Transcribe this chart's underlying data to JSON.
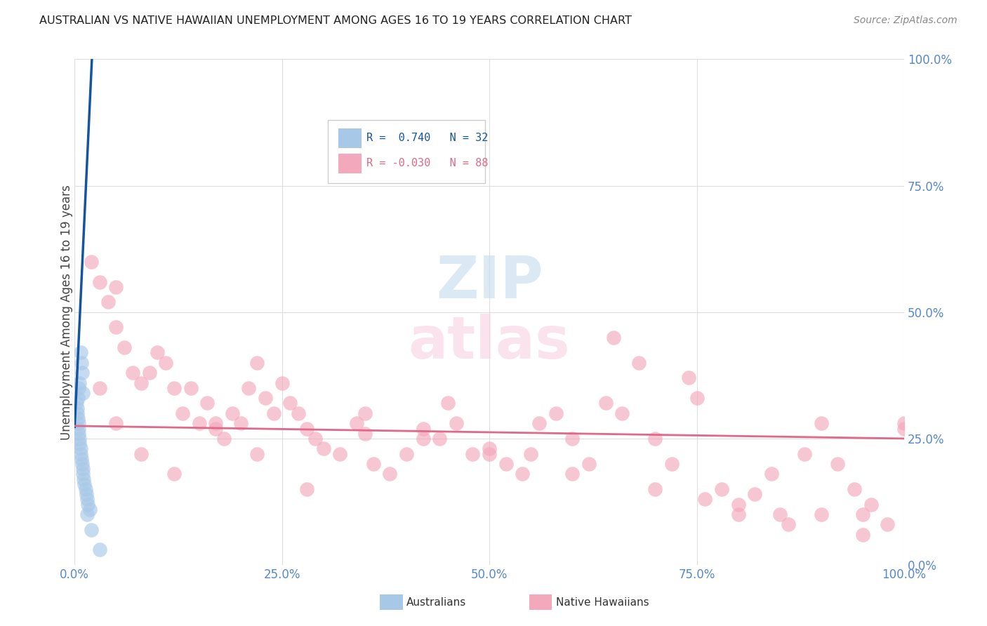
{
  "title": "AUSTRALIAN VS NATIVE HAWAIIAN UNEMPLOYMENT AMONG AGES 16 TO 19 YEARS CORRELATION CHART",
  "source": "Source: ZipAtlas.com",
  "ylabel": "Unemployment Among Ages 16 to 19 years",
  "ytick_values": [
    0,
    25,
    50,
    75,
    100
  ],
  "xtick_values": [
    0,
    25,
    50,
    75,
    100
  ],
  "r_blue": 0.74,
  "n_blue": 32,
  "r_pink": -0.03,
  "n_pink": 88,
  "blue_color": "#a8c8e8",
  "pink_color": "#f4a8bc",
  "blue_line_color": "#1555a0",
  "pink_line_color": "#e06888",
  "blue_text_color": "#1555a0",
  "pink_text_color": "#e06888",
  "tick_color": "#5588cc",
  "background_color": "#ffffff",
  "grid_color": "#dddddd",
  "watermark_zip_color": "#cce0f0",
  "watermark_atlas_color": "#f8d8e4",
  "aus_x": [
    0.3,
    0.4,
    0.5,
    0.5,
    0.5,
    0.6,
    0.6,
    0.7,
    0.7,
    0.8,
    0.9,
    1.0,
    1.0,
    1.1,
    1.2,
    1.3,
    1.4,
    1.5,
    1.6,
    1.8,
    0.2,
    0.3,
    0.4,
    0.5,
    0.6,
    0.7,
    0.8,
    0.9,
    1.0,
    1.5,
    2.0,
    3.0
  ],
  "aus_y": [
    30,
    29,
    28,
    27,
    26,
    25,
    24,
    23,
    22,
    21,
    20,
    19,
    18,
    17,
    16,
    15,
    14,
    13,
    12,
    11,
    32,
    31,
    33,
    35,
    36,
    42,
    40,
    38,
    34,
    10,
    7,
    3
  ],
  "nh_x": [
    2,
    3,
    4,
    5,
    5,
    6,
    7,
    8,
    9,
    10,
    11,
    12,
    13,
    14,
    15,
    16,
    17,
    18,
    19,
    20,
    21,
    22,
    23,
    24,
    25,
    26,
    27,
    28,
    29,
    30,
    32,
    34,
    35,
    36,
    38,
    40,
    42,
    44,
    45,
    46,
    48,
    50,
    52,
    54,
    55,
    56,
    58,
    60,
    62,
    64,
    65,
    66,
    68,
    70,
    72,
    74,
    75,
    76,
    78,
    80,
    82,
    84,
    85,
    86,
    88,
    90,
    92,
    94,
    95,
    96,
    98,
    100,
    3,
    5,
    8,
    12,
    17,
    22,
    28,
    35,
    42,
    50,
    60,
    70,
    80,
    90,
    95,
    100
  ],
  "nh_y": [
    60,
    56,
    52,
    55,
    47,
    43,
    38,
    36,
    38,
    42,
    40,
    35,
    30,
    35,
    28,
    32,
    27,
    25,
    30,
    28,
    35,
    40,
    33,
    30,
    36,
    32,
    30,
    27,
    25,
    23,
    22,
    28,
    26,
    20,
    18,
    22,
    27,
    25,
    32,
    28,
    22,
    23,
    20,
    18,
    22,
    28,
    30,
    25,
    20,
    32,
    45,
    30,
    40,
    25,
    20,
    37,
    33,
    13,
    15,
    10,
    14,
    18,
    10,
    8,
    22,
    28,
    20,
    15,
    10,
    12,
    8,
    28,
    35,
    28,
    22,
    18,
    28,
    22,
    15,
    30,
    25,
    22,
    18,
    15,
    12,
    10,
    6,
    27
  ],
  "blue_intercept": 27.0,
  "blue_slope": 35.0,
  "pink_intercept": 27.5,
  "pink_slope": -0.025,
  "xlim": [
    0,
    100
  ],
  "ylim": [
    0,
    100
  ]
}
